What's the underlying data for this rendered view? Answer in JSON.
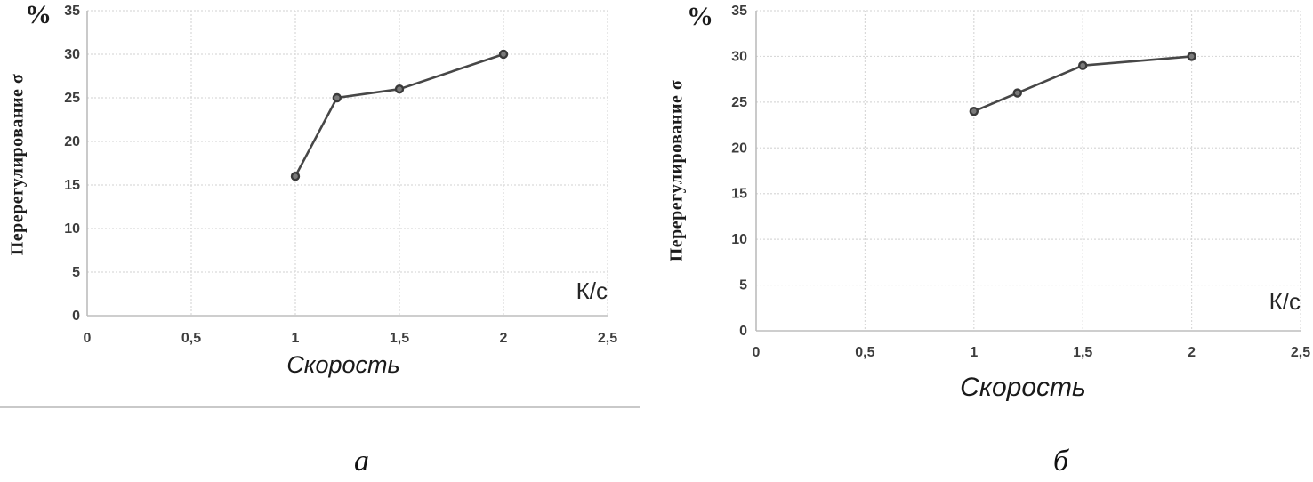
{
  "figure": {
    "divider": true
  },
  "chart_data": [
    {
      "type": "line",
      "caption": "а",
      "x": [
        1,
        1.2,
        1.5,
        2
      ],
      "y": [
        16,
        25,
        26,
        30
      ],
      "xlabel": "Скорость",
      "ylabel": "Перерегулирование σ",
      "y_unit_label": "%",
      "x_unit_label": "К/с",
      "xlim": [
        0,
        2.5
      ],
      "ylim": [
        0,
        35
      ],
      "x_tick_values": [
        0,
        0.5,
        1,
        1.5,
        2,
        2.5
      ],
      "x_tick_labels": [
        "0",
        "0,5",
        "1",
        "1,5",
        "2",
        "2,5"
      ],
      "y_tick_values": [
        0,
        5,
        10,
        15,
        20,
        25,
        30,
        35
      ],
      "y_tick_labels": [
        "0",
        "5",
        "10",
        "15",
        "20",
        "25",
        "30",
        "35"
      ],
      "grid": true,
      "legend": "none",
      "line_color": "#474747",
      "marker_fill": "#7a7a7a",
      "marker_stroke": "#3a3a3a",
      "grid_color": "#d9d9d9",
      "axis_color": "#bdbdbd",
      "tick_color": "#3d3d3d"
    },
    {
      "type": "line",
      "caption": "б",
      "x": [
        1,
        1.2,
        1.5,
        2
      ],
      "y": [
        24,
        26,
        29,
        30
      ],
      "xlabel": "Скорость",
      "ylabel": "Перерегулирование σ",
      "y_unit_label": "%",
      "x_unit_label": "К/с",
      "xlim": [
        0,
        2.5
      ],
      "ylim": [
        0,
        35
      ],
      "x_tick_values": [
        0,
        0.5,
        1,
        1.5,
        2,
        2.5
      ],
      "x_tick_labels": [
        "0",
        "0,5",
        "1",
        "1,5",
        "2",
        "2,5"
      ],
      "y_tick_values": [
        0,
        5,
        10,
        15,
        20,
        25,
        30,
        35
      ],
      "y_tick_labels": [
        "0",
        "5",
        "10",
        "15",
        "20",
        "25",
        "30",
        "35"
      ],
      "grid": true,
      "legend": "none",
      "line_color": "#474747",
      "marker_fill": "#7a7a7a",
      "marker_stroke": "#3a3a3a",
      "grid_color": "#d9d9d9",
      "axis_color": "#bdbdbd",
      "tick_color": "#3d3d3d"
    }
  ]
}
